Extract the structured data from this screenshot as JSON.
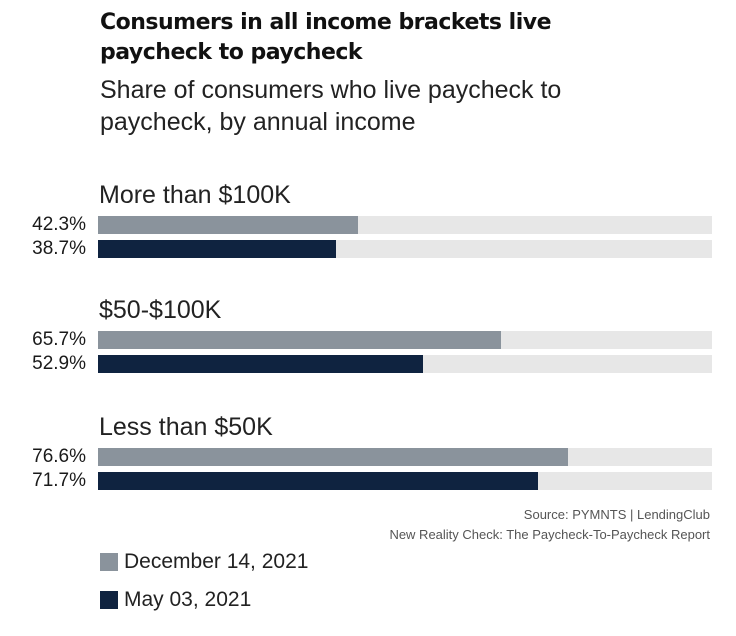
{
  "chart_data": {
    "type": "bar",
    "orientation": "horizontal",
    "title": "Consumers in all income brackets live paycheck to paycheck",
    "subtitle": "Share of consumers who live paycheck to paycheck, by annual income",
    "categories": [
      "More than $100K",
      "$50-$100K",
      "Less than $50K"
    ],
    "series": [
      {
        "name": "December 14, 2021",
        "color": "#8a939c",
        "values": [
          42.3,
          65.7,
          76.6
        ],
        "labels": [
          "42.3%",
          "65.7%",
          "76.6%"
        ]
      },
      {
        "name": "May 03, 2021",
        "color": "#0f2340",
        "values": [
          38.7,
          52.9,
          71.7
        ],
        "labels": [
          "38.7%",
          "52.9%",
          "71.7%"
        ]
      }
    ],
    "xlim": [
      0,
      100
    ],
    "grid": false,
    "legend_position": "bottom-left",
    "track_color": "#e7e7e7"
  },
  "source": {
    "line1": "Source: PYMNTS  |  LendingClub",
    "line2": "New Reality Check: The Paycheck-To-Paycheck Report"
  }
}
